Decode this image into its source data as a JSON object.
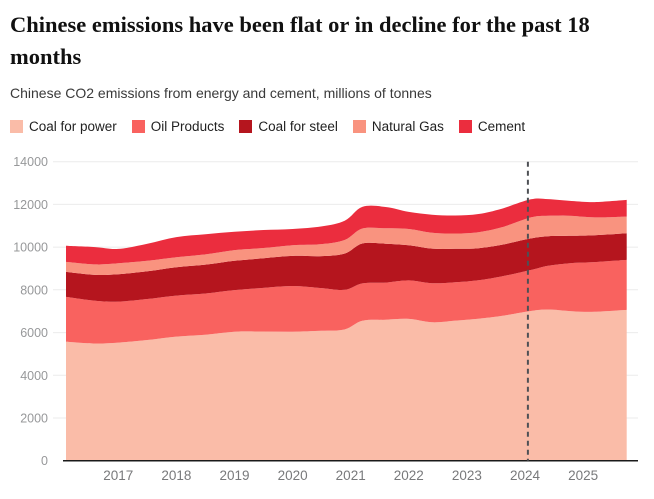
{
  "header": {
    "title": "Chinese emissions have been flat or in decline for the past 18 months",
    "subtitle": "Chinese CO2 emissions from energy and cement, millions of tonnes"
  },
  "legend": [
    {
      "label": "Coal for power",
      "color": "#FABCA8"
    },
    {
      "label": "Oil Products",
      "color": "#F9625F"
    },
    {
      "label": "Coal for steel",
      "color": "#B5151E"
    },
    {
      "label": "Natural Gas",
      "color": "#F9937F"
    },
    {
      "label": "Cement",
      "color": "#EB2D3E"
    }
  ],
  "chart_data": {
    "type": "area",
    "stacked": true,
    "title": "Chinese emissions have been flat or in decline for the past 18 months",
    "subtitle": "Chinese CO2 emissions from energy and cement, millions of tonnes",
    "unit": "millions of tonnes CO2",
    "x": [
      2016.1,
      2016.6,
      2017.0,
      2017.5,
      2018.0,
      2018.5,
      2019.0,
      2019.5,
      2020.0,
      2020.5,
      2020.9,
      2021.2,
      2021.6,
      2022.0,
      2022.4,
      2022.8,
      2023.2,
      2023.6,
      2024.1,
      2024.4,
      2024.8,
      2025.2,
      2025.75
    ],
    "series": [
      {
        "name": "Coal for power",
        "color": "#FABCA8",
        "values": [
          5570,
          5490,
          5530,
          5650,
          5810,
          5900,
          6040,
          6050,
          6040,
          6080,
          6150,
          6550,
          6600,
          6640,
          6480,
          6560,
          6650,
          6780,
          7010,
          7080,
          7000,
          6970,
          7060
        ]
      },
      {
        "name": "Oil Products",
        "color": "#F9625F",
        "values": [
          2100,
          2000,
          1920,
          1920,
          1920,
          1930,
          1950,
          2040,
          2140,
          2000,
          1850,
          1750,
          1740,
          1800,
          1830,
          1800,
          1800,
          1850,
          1920,
          2050,
          2250,
          2330,
          2340
        ]
      },
      {
        "name": "Coal for steel",
        "color": "#B5151E",
        "values": [
          1170,
          1210,
          1280,
          1300,
          1330,
          1350,
          1370,
          1390,
          1410,
          1500,
          1700,
          1870,
          1820,
          1650,
          1620,
          1560,
          1500,
          1480,
          1480,
          1380,
          1280,
          1260,
          1250
        ]
      },
      {
        "name": "Natural Gas",
        "color": "#F9937F",
        "values": [
          470,
          490,
          515,
          490,
          470,
          480,
          500,
          480,
          500,
          560,
          640,
          700,
          720,
          760,
          740,
          720,
          750,
          820,
          980,
          960,
          930,
          830,
          780
        ]
      },
      {
        "name": "Cement",
        "color": "#EB2D3E",
        "values": [
          750,
          810,
          670,
          800,
          940,
          940,
          860,
          840,
          760,
          830,
          900,
          1015,
          1000,
          800,
          850,
          840,
          850,
          870,
          850,
          780,
          700,
          720,
          780
        ]
      }
    ],
    "ylim": [
      0,
      14000
    ],
    "yticks": [
      0,
      2000,
      4000,
      6000,
      8000,
      10000,
      12000,
      14000
    ],
    "xticks": [
      2017,
      2018,
      2019,
      2020,
      2021,
      2022,
      2023,
      2024,
      2025
    ],
    "grid": "horizontal",
    "legend_position": "top",
    "annotation": {
      "type": "vline",
      "x": 2024.05,
      "style": "dashed",
      "color": "#4E5055"
    }
  },
  "colors": {
    "background": "#FFFFFF",
    "grid": "#EBEBEB",
    "axis": "#1A1A1A",
    "ytick_text": "#97989A",
    "xtick_text": "#78797B"
  }
}
